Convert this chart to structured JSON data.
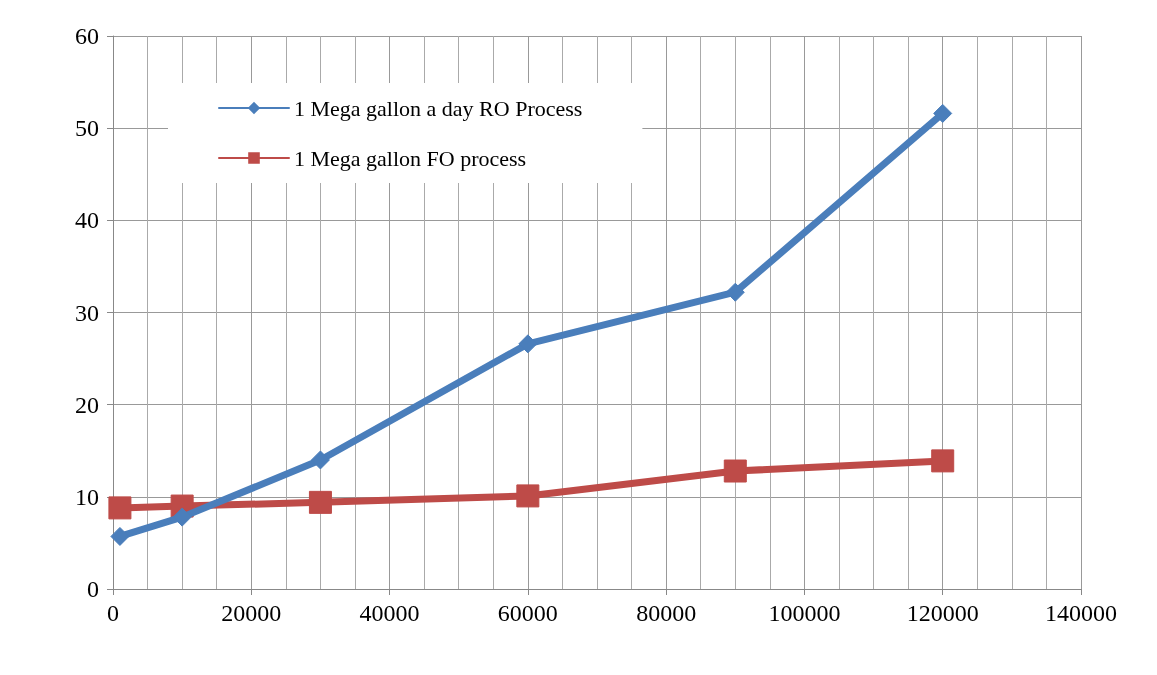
{
  "chart_data": {
    "type": "line",
    "x": [
      1000,
      10000,
      30000,
      60000,
      90000,
      120000
    ],
    "series": [
      {
        "name": "1 Mega gallon a day RO Process",
        "color": "#4a7ebb",
        "marker": "diamond",
        "values": [
          5.7,
          7.8,
          14,
          26.6,
          32.2,
          51.6
        ]
      },
      {
        "name": "1 Mega gallon FO process",
        "color": "#be4b48",
        "marker": "square",
        "values": [
          8.8,
          9.0,
          9.4,
          10.1,
          12.8,
          13.9
        ]
      }
    ],
    "xlim": [
      0,
      140000
    ],
    "xticks": [
      0,
      20000,
      40000,
      60000,
      80000,
      100000,
      120000,
      140000
    ],
    "ylim": [
      0,
      60
    ],
    "yticks": [
      0,
      10,
      20,
      30,
      40,
      50,
      60
    ],
    "grid": true,
    "legend": "top left",
    "line_style": "solid"
  }
}
